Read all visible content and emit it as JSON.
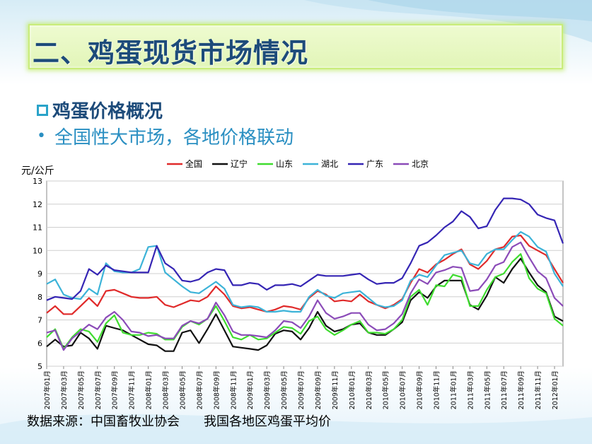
{
  "page": {
    "title": "二、鸡蛋现货市场情况",
    "bullet1": "鸡蛋价格概况",
    "bullet2": "全国性大市场，各地价格联动",
    "source_label": "数据来源：中国畜牧业协会",
    "source_note": "我国各地区鸡蛋平均价"
  },
  "chart_data": {
    "type": "line",
    "ylabel": "元/公斤",
    "ylim": [
      5,
      13
    ],
    "yticks": [
      5,
      6,
      7,
      8,
      9,
      10,
      11,
      12,
      13
    ],
    "grid": true,
    "legend_position": "top",
    "x": [
      "2007年01月",
      "2007年02月",
      "2007年03月",
      "2007年04月",
      "2007年05月",
      "2007年06月",
      "2007年07月",
      "2007年08月",
      "2007年09月",
      "2007年10月",
      "2007年11月",
      "2007年12月",
      "2008年01月",
      "2008年02月",
      "2008年03月",
      "2008年04月",
      "2008年05月",
      "2008年06月",
      "2008年07月",
      "2008年08月",
      "2008年09月",
      "2008年10月",
      "2008年11月",
      "2008年12月",
      "2009年01月",
      "2009年02月",
      "2009年03月",
      "2009年04月",
      "2009年05月",
      "2009年06月",
      "2009年07月",
      "2009年08月",
      "2009年09月",
      "2009年10月",
      "2009年11月",
      "2009年12月",
      "2010年01月",
      "2010年02月",
      "2010年03月",
      "2010年04月",
      "2010年05月",
      "2010年06月",
      "2010年07月",
      "2010年08月",
      "2010年09月",
      "2010年10月",
      "2010年11月",
      "2010年12月",
      "2011年01月",
      "2011年02月",
      "2011年03月",
      "2011年04月",
      "2011年05月",
      "2011年06月",
      "2011年07月",
      "2011年08月",
      "2011年09月",
      "2011年10月",
      "2011年11月",
      "2011年12月",
      "2012年01月",
      "2012年02月"
    ],
    "x_tick_labels": [
      "2007年01月",
      "2007年03月",
      "2007年05月",
      "2007年07月",
      "2007年09月",
      "2007年11月",
      "2008年01月",
      "2008年03月",
      "2008年05月",
      "2008年07月",
      "2008年09月",
      "2008年11月",
      "2009年01月",
      "2009年03月",
      "2009年05月",
      "2009年07月",
      "2009年09月",
      "2009年11月",
      "2010年01月",
      "2010年03月",
      "2010年05月",
      "2010年07月",
      "2010年09月",
      "2010年11月",
      "2011年01月",
      "2011年03月",
      "2011年05月",
      "2011年07月",
      "2011年09月",
      "2011年11月",
      "2012年01月"
    ],
    "series": [
      {
        "name": "全国",
        "color": "#e02a2a",
        "values": [
          7.3,
          7.6,
          7.25,
          7.25,
          7.6,
          7.95,
          7.6,
          8.25,
          8.3,
          8.15,
          8.0,
          7.95,
          7.95,
          8.0,
          7.65,
          7.55,
          7.7,
          7.85,
          7.8,
          8.0,
          8.45,
          8.1,
          7.6,
          7.5,
          7.55,
          7.45,
          7.35,
          7.45,
          7.6,
          7.55,
          7.45,
          7.95,
          8.25,
          8.1,
          7.8,
          7.85,
          7.8,
          8.1,
          7.8,
          7.65,
          7.5,
          7.65,
          7.9,
          8.6,
          9.2,
          9.05,
          9.4,
          9.6,
          9.85,
          10.05,
          9.4,
          9.2,
          9.55,
          10.05,
          10.15,
          10.6,
          10.65,
          10.2,
          10.0,
          9.8,
          9.2,
          8.6
        ]
      },
      {
        "name": "辽宁",
        "color": "#111111",
        "values": [
          5.85,
          6.15,
          5.85,
          5.9,
          6.45,
          6.2,
          5.75,
          6.75,
          6.65,
          6.55,
          6.35,
          6.15,
          5.95,
          5.9,
          5.65,
          5.65,
          6.45,
          6.55,
          6.0,
          6.6,
          7.25,
          6.55,
          5.85,
          5.8,
          5.75,
          5.7,
          5.9,
          6.4,
          6.55,
          6.5,
          6.15,
          6.65,
          7.35,
          6.75,
          6.5,
          6.6,
          6.8,
          6.85,
          6.45,
          6.35,
          6.35,
          6.6,
          6.9,
          7.85,
          8.2,
          7.95,
          8.45,
          8.7,
          8.7,
          8.7,
          7.65,
          7.45,
          8.05,
          8.85,
          8.6,
          9.2,
          9.65,
          9.05,
          8.5,
          8.2,
          7.15,
          6.95
        ]
      },
      {
        "name": "山东",
        "color": "#3fdc2f",
        "values": [
          6.25,
          6.6,
          5.75,
          6.25,
          6.6,
          6.5,
          6.05,
          6.85,
          7.2,
          6.45,
          6.35,
          6.35,
          6.45,
          6.4,
          6.15,
          6.15,
          6.7,
          6.95,
          6.8,
          7.05,
          7.6,
          6.95,
          6.25,
          6.15,
          6.35,
          6.15,
          6.2,
          6.45,
          6.7,
          6.65,
          6.4,
          6.95,
          7.15,
          6.6,
          6.35,
          6.55,
          6.8,
          6.95,
          6.45,
          6.45,
          6.4,
          6.6,
          7.0,
          8.0,
          8.3,
          7.65,
          8.5,
          8.45,
          8.95,
          8.85,
          7.6,
          7.6,
          8.3,
          8.85,
          9.0,
          9.5,
          9.85,
          8.8,
          8.35,
          8.15,
          7.05,
          6.75
        ]
      },
      {
        "name": "湖北",
        "color": "#3cb3d8",
        "values": [
          8.55,
          8.75,
          8.1,
          7.95,
          7.9,
          8.35,
          8.1,
          9.45,
          9.1,
          9.05,
          9.05,
          9.2,
          10.15,
          10.2,
          9.05,
          8.75,
          8.45,
          8.2,
          8.15,
          8.4,
          8.65,
          8.35,
          7.65,
          7.55,
          7.6,
          7.55,
          7.35,
          7.35,
          7.4,
          7.35,
          7.35,
          8.0,
          8.3,
          8.05,
          7.95,
          8.15,
          8.2,
          8.25,
          7.95,
          7.65,
          7.55,
          7.6,
          7.85,
          8.7,
          8.95,
          8.85,
          9.35,
          9.8,
          9.9,
          10.0,
          9.45,
          9.35,
          9.85,
          10.05,
          10.05,
          10.45,
          10.8,
          10.6,
          10.15,
          9.95,
          9.0,
          8.45
        ]
      },
      {
        "name": "广东",
        "color": "#3525b4",
        "values": [
          7.85,
          8.0,
          7.95,
          7.9,
          8.25,
          9.2,
          8.95,
          9.35,
          9.15,
          9.1,
          9.05,
          9.05,
          9.05,
          10.2,
          9.45,
          9.2,
          8.7,
          8.65,
          8.75,
          9.05,
          9.2,
          9.15,
          8.5,
          8.5,
          8.6,
          8.55,
          8.3,
          8.5,
          8.5,
          8.55,
          8.45,
          8.7,
          8.95,
          8.9,
          8.9,
          8.9,
          8.95,
          9.0,
          8.75,
          8.55,
          8.6,
          8.6,
          8.8,
          9.45,
          10.2,
          10.35,
          10.65,
          11.0,
          11.25,
          11.7,
          11.45,
          10.95,
          11.05,
          11.75,
          12.25,
          12.25,
          12.2,
          12.0,
          11.55,
          11.4,
          11.3,
          10.3
        ]
      },
      {
        "name": "北京",
        "color": "#8b4bb8",
        "values": [
          6.45,
          6.55,
          5.7,
          6.2,
          6.5,
          6.8,
          6.6,
          7.1,
          7.35,
          7.0,
          6.5,
          6.45,
          6.3,
          6.35,
          6.2,
          6.2,
          6.75,
          6.95,
          6.85,
          7.05,
          7.75,
          7.2,
          6.5,
          6.35,
          6.35,
          6.3,
          6.25,
          6.55,
          6.95,
          6.9,
          6.65,
          7.15,
          7.85,
          7.3,
          7.05,
          7.15,
          7.3,
          7.3,
          6.8,
          6.55,
          6.6,
          6.85,
          7.25,
          8.15,
          8.75,
          8.55,
          9.05,
          9.15,
          9.3,
          9.25,
          8.25,
          8.3,
          8.75,
          9.35,
          9.5,
          10.15,
          10.35,
          9.7,
          9.1,
          8.8,
          7.95,
          7.6
        ]
      }
    ]
  }
}
